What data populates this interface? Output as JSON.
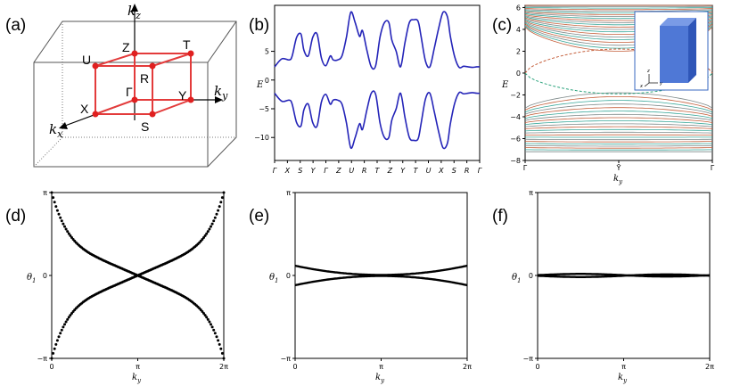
{
  "figure": {
    "panel_labels": [
      "(a)",
      "(b)",
      "(c)",
      "(d)",
      "(e)",
      "(f)"
    ]
  },
  "panel_a": {
    "axis_labels": {
      "kz": "k",
      "kz_sub": "z",
      "ky": "k",
      "ky_sub": "y",
      "kx": "k",
      "kx_sub": "x"
    },
    "points": [
      "Z",
      "T",
      "U",
      "R",
      "Γ",
      "Y",
      "X",
      "S"
    ],
    "colors": {
      "cube": "#e33b3b",
      "points": "#e02020",
      "box": "#555555"
    }
  },
  "chart_data": [
    {
      "panel": "(b)",
      "type": "line",
      "ylabel": "E",
      "yticks": [
        5,
        0,
        -5,
        -10
      ],
      "ylim": [
        -14,
        13
      ],
      "xticks": [
        "Γ",
        "X",
        "S",
        "Y",
        "Γ",
        "Z",
        "U",
        "R",
        "T",
        "Z",
        "Y",
        "T",
        "U",
        "X",
        "S",
        "R",
        "Γ"
      ],
      "series": [
        {
          "values_x": [
            0,
            0.25,
            0.5,
            0.6,
            0.75,
            0.9,
            1.0,
            1.15,
            1.3,
            1.45,
            1.6,
            1.75,
            1.9,
            2.0,
            2.15,
            2.3,
            2.45,
            2.6,
            2.75,
            2.9,
            3.0,
            3.15,
            3.3,
            3.45,
            3.6,
            3.75,
            3.9,
            4.0,
            4.15,
            4.3,
            4.45,
            4.6,
            4.75,
            4.9,
            5.0,
            5.15,
            5.3,
            5.45,
            5.6,
            5.75,
            5.9,
            6.0,
            6.15,
            6.3,
            6.45,
            6.6,
            6.75,
            6.9,
            7.0
          ],
          "values_y": [
            2.3,
            3.7,
            3.5,
            4.2,
            7.4,
            8.0,
            5.2,
            4.2,
            7.4,
            8.0,
            3.8,
            2.5,
            4.2,
            3.5,
            3.5,
            4.2,
            7.4,
            11.8,
            10.0,
            7.6,
            8.6,
            5.2,
            2.3,
            2.5,
            7.5,
            10.0,
            10.0,
            7.0,
            5.0,
            2.3,
            6.5,
            10.0,
            10.5,
            10.2,
            7.6,
            3.3,
            2.3,
            5.5,
            9.0,
            11.8,
            11.0,
            7.6,
            4.0,
            2.2,
            2.4,
            2.3,
            2.2,
            2.3,
            2.3
          ]
        },
        {
          "values_x": [
            0,
            0.25,
            0.5,
            0.6,
            0.75,
            0.9,
            1.0,
            1.15,
            1.3,
            1.45,
            1.6,
            1.75,
            1.9,
            2.0,
            2.15,
            2.3,
            2.45,
            2.6,
            2.75,
            2.9,
            3.0,
            3.15,
            3.3,
            3.45,
            3.6,
            3.75,
            3.9,
            4.0,
            4.15,
            4.3,
            4.45,
            4.6,
            4.75,
            4.9,
            5.0,
            5.15,
            5.3,
            5.45,
            5.6,
            5.75,
            5.9,
            6.0,
            6.15,
            6.3,
            6.45,
            6.6,
            6.75,
            6.9,
            7.0
          ],
          "values_y": [
            -2.3,
            -3.7,
            -3.5,
            -4.2,
            -7.4,
            -8.0,
            -5.2,
            -4.2,
            -7.4,
            -8.0,
            -3.8,
            -2.5,
            -4.2,
            -3.5,
            -3.5,
            -4.2,
            -7.4,
            -11.8,
            -10.0,
            -7.6,
            -8.6,
            -5.2,
            -2.3,
            -2.5,
            -7.5,
            -10.0,
            -10.0,
            -7.0,
            -5.0,
            -2.3,
            -6.5,
            -10.0,
            -10.5,
            -10.2,
            -7.6,
            -3.3,
            -2.3,
            -5.5,
            -9.0,
            -11.8,
            -11.0,
            -7.6,
            -4.0,
            -2.2,
            -2.4,
            -2.3,
            -2.2,
            -2.3,
            -2.3
          ]
        }
      ],
      "color": "#2424b8"
    },
    {
      "panel": "(c)",
      "type": "line",
      "ylabel": "E",
      "xlabel": "k",
      "xlabel_sub": "y",
      "yticks": [
        6,
        4,
        2,
        0,
        -2,
        -4,
        -6,
        -8
      ],
      "ylim": [
        -8,
        6.2
      ],
      "xticks": [
        "Γ̄",
        "Ȳ",
        "Γ̄"
      ],
      "bands": {
        "upper_top": 6.2,
        "upper_bottom_edge": 4.2,
        "upper_bottom_center": 2.0,
        "lower_top_edge": -3.2,
        "lower_top_center": -1.8,
        "lower_bottom": -7.2
      },
      "colors": {
        "band_a": "#c5603c",
        "band_b": "#7f8a8a",
        "band_c": "#3aa89a",
        "surface": "#2aa27c"
      },
      "inset": {
        "axes": [
          "z",
          "x",
          "y"
        ],
        "cube_color": "#4f78d6"
      }
    },
    {
      "panel": "(d)",
      "type": "scatter",
      "ylabel": "θ",
      "ylabel_sub": "1",
      "xlabel": "k",
      "xlabel_sub": "y",
      "yticks": [
        "π",
        "0",
        "−π"
      ],
      "xticks": [
        "0",
        "π",
        "2π"
      ],
      "xlim": [
        0,
        6.283
      ],
      "ylim": [
        -3.1416,
        3.1416
      ],
      "curves": "two crossing Wannier bands winding from -π to π",
      "color": "#000000"
    },
    {
      "panel": "(e)",
      "type": "line",
      "ylabel": "θ",
      "ylabel_sub": "1",
      "xlabel": "k",
      "xlabel_sub": "y",
      "yticks": [
        "π",
        "0",
        "−π"
      ],
      "xticks": [
        "0",
        "π",
        "2π"
      ],
      "xlim": [
        0,
        6.283
      ],
      "ylim": [
        -3.1416,
        3.1416
      ],
      "curves": "two Wannier bands with endpoints ±0.35, touching at π",
      "color": "#000000"
    },
    {
      "panel": "(f)",
      "type": "line",
      "ylabel": "θ",
      "ylabel_sub": "1",
      "xlabel": "k",
      "xlabel_sub": "y",
      "yticks": [
        "π",
        "0",
        "−π"
      ],
      "xticks": [
        "0",
        "π",
        "2π"
      ],
      "xlim": [
        0,
        6.283
      ],
      "ylim": [
        -3.1416,
        3.1416
      ],
      "curves": "two nearly flat Wannier bands at θ≈0",
      "color": "#000000"
    }
  ]
}
